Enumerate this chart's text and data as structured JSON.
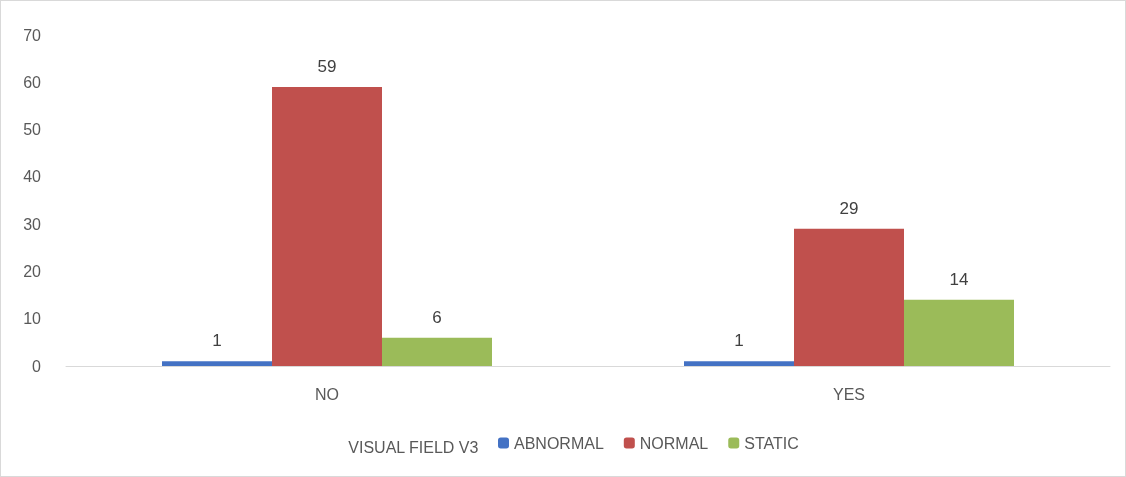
{
  "chart_data": {
    "type": "bar",
    "categories": [
      "NO",
      "YES"
    ],
    "series": [
      {
        "name": "ABNORMAL",
        "color": "#4472c4",
        "values": [
          1,
          1
        ]
      },
      {
        "name": "NORMAL",
        "color": "#c0504d",
        "values": [
          59,
          29
        ]
      },
      {
        "name": "STATIC",
        "color": "#9bbb59",
        "values": [
          6,
          14
        ]
      }
    ],
    "legend_title": "VISUAL FIELD V3",
    "legend": "bottom",
    "data_labels": true,
    "grid": false,
    "ylim": [
      0,
      70
    ],
    "yticks": [
      0,
      10,
      20,
      30,
      40,
      50,
      60,
      70
    ]
  }
}
